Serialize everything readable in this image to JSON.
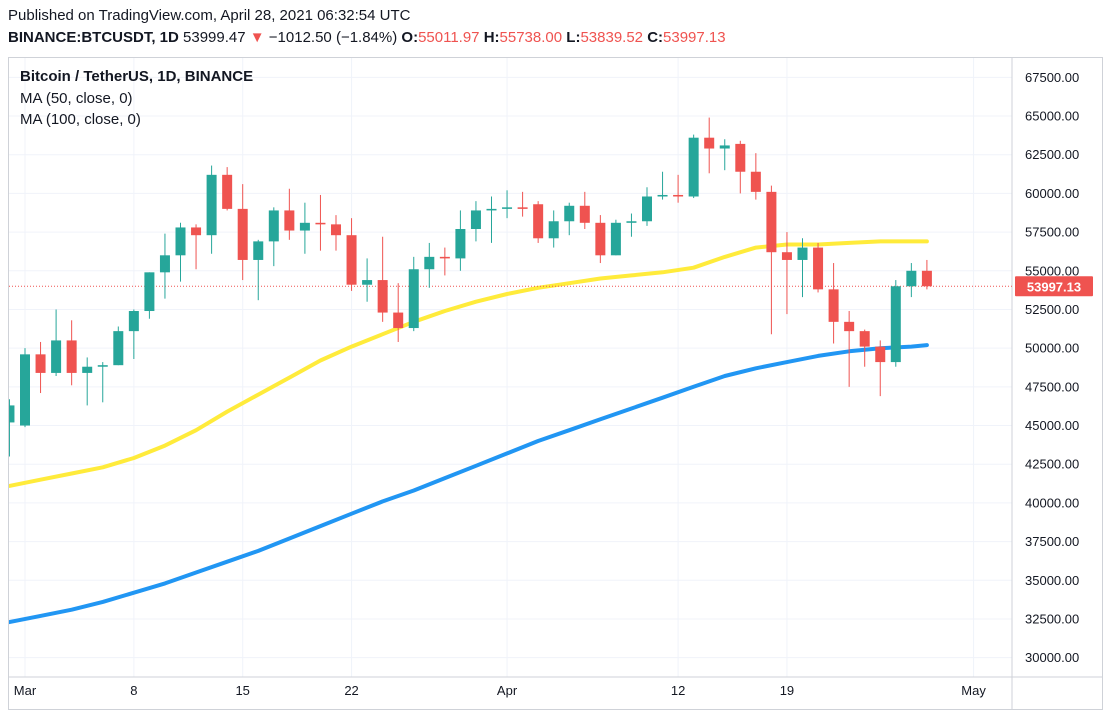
{
  "header": {
    "published": "Published on TradingView.com, April 28, 2021 06:32:54 UTC",
    "symbol": "BINANCE:BTCUSDT, 1D",
    "last": "53999.47",
    "arrow": "▼",
    "change": "−1012.50 (−1.84%)",
    "o_label": "O:",
    "o_value": "55011.97",
    "h_label": "H:",
    "h_value": "55738.00",
    "l_label": "L:",
    "l_value": "53839.52",
    "c_label": "C:",
    "c_value": "53997.13"
  },
  "legend": {
    "title": "Bitcoin / TetherUS, 1D, BINANCE",
    "ma50": "MA (50, close, 0)",
    "ma100": "MA (100, close, 0)"
  },
  "colors": {
    "up": "#26a69a",
    "down": "#ef5350",
    "ma50": "#ffeb3b",
    "ma100": "#2196f3",
    "grid": "#f0f3fa",
    "price_line": "#ef5350"
  },
  "chart_data": {
    "type": "candlestick",
    "ylim": [
      28750,
      68750
    ],
    "y_ticks": [
      "67500.00",
      "65000.00",
      "62500.00",
      "60000.00",
      "57500.00",
      "55000.00",
      "52500.00",
      "50000.00",
      "47500.00",
      "45000.00",
      "42500.00",
      "40000.00",
      "37500.00",
      "35000.00",
      "32500.00",
      "30000.00"
    ],
    "x_ticks": [
      {
        "label": "Mar",
        "day": 1
      },
      {
        "label": "8",
        "day": 8
      },
      {
        "label": "15",
        "day": 15
      },
      {
        "label": "22",
        "day": 22
      },
      {
        "label": "Apr",
        "day": 32
      },
      {
        "label": "12",
        "day": 43
      },
      {
        "label": "19",
        "day": 50
      },
      {
        "label": "May",
        "day": 62
      }
    ],
    "last_price_label": "53997.13",
    "last_price": 53997.13,
    "candles": [
      {
        "day": 0,
        "o": 45200,
        "h": 46700,
        "l": 43000,
        "c": 46300
      },
      {
        "day": 1,
        "o": 45000,
        "h": 50000,
        "l": 44900,
        "c": 49600
      },
      {
        "day": 2,
        "o": 49600,
        "h": 50400,
        "l": 47100,
        "c": 48400
      },
      {
        "day": 3,
        "o": 48400,
        "h": 52500,
        "l": 48200,
        "c": 50500
      },
      {
        "day": 4,
        "o": 50500,
        "h": 51800,
        "l": 47600,
        "c": 48400
      },
      {
        "day": 5,
        "o": 48400,
        "h": 49400,
        "l": 46300,
        "c": 48800
      },
      {
        "day": 6,
        "o": 48800,
        "h": 49100,
        "l": 46500,
        "c": 48900
      },
      {
        "day": 7,
        "o": 48900,
        "h": 51400,
        "l": 48900,
        "c": 51100
      },
      {
        "day": 8,
        "o": 51100,
        "h": 52500,
        "l": 49300,
        "c": 52400
      },
      {
        "day": 9,
        "o": 52400,
        "h": 54900,
        "l": 51900,
        "c": 54900
      },
      {
        "day": 10,
        "o": 54900,
        "h": 57400,
        "l": 53200,
        "c": 56000
      },
      {
        "day": 11,
        "o": 56000,
        "h": 58100,
        "l": 54300,
        "c": 57800
      },
      {
        "day": 12,
        "o": 57800,
        "h": 58000,
        "l": 55100,
        "c": 57300
      },
      {
        "day": 13,
        "o": 57300,
        "h": 61800,
        "l": 56100,
        "c": 61200
      },
      {
        "day": 14,
        "o": 61200,
        "h": 61700,
        "l": 58900,
        "c": 59000
      },
      {
        "day": 15,
        "o": 59000,
        "h": 60600,
        "l": 54400,
        "c": 55700
      },
      {
        "day": 16,
        "o": 55700,
        "h": 57000,
        "l": 53100,
        "c": 56900
      },
      {
        "day": 17,
        "o": 56900,
        "h": 59100,
        "l": 55300,
        "c": 58900
      },
      {
        "day": 18,
        "o": 58900,
        "h": 60300,
        "l": 57000,
        "c": 57600
      },
      {
        "day": 19,
        "o": 57600,
        "h": 59400,
        "l": 56100,
        "c": 58100
      },
      {
        "day": 20,
        "o": 58100,
        "h": 59900,
        "l": 56300,
        "c": 58000
      },
      {
        "day": 21,
        "o": 58000,
        "h": 58600,
        "l": 56300,
        "c": 57300
      },
      {
        "day": 22,
        "o": 57300,
        "h": 58400,
        "l": 53700,
        "c": 54100
      },
      {
        "day": 23,
        "o": 54100,
        "h": 55800,
        "l": 53000,
        "c": 54400
      },
      {
        "day": 24,
        "o": 54400,
        "h": 57200,
        "l": 51700,
        "c": 52300
      },
      {
        "day": 25,
        "o": 52300,
        "h": 54200,
        "l": 50400,
        "c": 51300
      },
      {
        "day": 26,
        "o": 51300,
        "h": 55900,
        "l": 51100,
        "c": 55100
      },
      {
        "day": 27,
        "o": 55100,
        "h": 56800,
        "l": 53900,
        "c": 55900
      },
      {
        "day": 28,
        "o": 55900,
        "h": 56500,
        "l": 54700,
        "c": 55800
      },
      {
        "day": 29,
        "o": 55800,
        "h": 58900,
        "l": 55000,
        "c": 57700
      },
      {
        "day": 30,
        "o": 57700,
        "h": 59500,
        "l": 56900,
        "c": 58900
      },
      {
        "day": 31,
        "o": 58900,
        "h": 59800,
        "l": 56800,
        "c": 59000
      },
      {
        "day": 32,
        "o": 59000,
        "h": 60200,
        "l": 58400,
        "c": 59100
      },
      {
        "day": 33,
        "o": 59100,
        "h": 60100,
        "l": 58500,
        "c": 59000
      },
      {
        "day": 34,
        "o": 59300,
        "h": 59500,
        "l": 56800,
        "c": 57100
      },
      {
        "day": 35,
        "o": 57100,
        "h": 58900,
        "l": 56500,
        "c": 58200
      },
      {
        "day": 36,
        "o": 58200,
        "h": 59400,
        "l": 57300,
        "c": 59200
      },
      {
        "day": 37,
        "o": 59200,
        "h": 60100,
        "l": 57700,
        "c": 58100
      },
      {
        "day": 38,
        "o": 58100,
        "h": 58600,
        "l": 55500,
        "c": 56000
      },
      {
        "day": 39,
        "o": 56000,
        "h": 58300,
        "l": 56000,
        "c": 58100
      },
      {
        "day": 40,
        "o": 58100,
        "h": 58700,
        "l": 57200,
        "c": 58200
      },
      {
        "day": 41,
        "o": 58200,
        "h": 60400,
        "l": 57900,
        "c": 59800
      },
      {
        "day": 42,
        "o": 59800,
        "h": 61400,
        "l": 59600,
        "c": 59900
      },
      {
        "day": 43,
        "o": 59900,
        "h": 61200,
        "l": 59400,
        "c": 59800
      },
      {
        "day": 44,
        "o": 59800,
        "h": 63800,
        "l": 59700,
        "c": 63600
      },
      {
        "day": 45,
        "o": 63600,
        "h": 64900,
        "l": 61300,
        "c": 62900
      },
      {
        "day": 46,
        "o": 62900,
        "h": 63500,
        "l": 61500,
        "c": 63100
      },
      {
        "day": 47,
        "o": 63200,
        "h": 63400,
        "l": 60000,
        "c": 61400
      },
      {
        "day": 48,
        "o": 61400,
        "h": 62600,
        "l": 59600,
        "c": 60100
      },
      {
        "day": 49,
        "o": 60100,
        "h": 60500,
        "l": 50900,
        "c": 56200
      },
      {
        "day": 50,
        "o": 56200,
        "h": 57500,
        "l": 52200,
        "c": 55700
      },
      {
        "day": 51,
        "o": 55700,
        "h": 57100,
        "l": 53300,
        "c": 56500
      },
      {
        "day": 52,
        "o": 56500,
        "h": 56800,
        "l": 53600,
        "c": 53800
      },
      {
        "day": 53,
        "o": 53800,
        "h": 55500,
        "l": 50300,
        "c": 51700
      },
      {
        "day": 54,
        "o": 51700,
        "h": 52400,
        "l": 47500,
        "c": 51100
      },
      {
        "day": 55,
        "o": 51100,
        "h": 51200,
        "l": 48800,
        "c": 50100
      },
      {
        "day": 56,
        "o": 50100,
        "h": 50500,
        "l": 46900,
        "c": 49100
      },
      {
        "day": 57,
        "o": 49100,
        "h": 54400,
        "l": 48800,
        "c": 54000
      },
      {
        "day": 58,
        "o": 54000,
        "h": 55500,
        "l": 53300,
        "c": 55000
      },
      {
        "day": 59,
        "o": 55000,
        "h": 55700,
        "l": 53800,
        "c": 54000
      }
    ],
    "ma50": [
      [
        0,
        41100
      ],
      [
        2,
        41500
      ],
      [
        4,
        41900
      ],
      [
        6,
        42300
      ],
      [
        8,
        42900
      ],
      [
        10,
        43700
      ],
      [
        12,
        44700
      ],
      [
        14,
        45900
      ],
      [
        16,
        47000
      ],
      [
        18,
        48100
      ],
      [
        20,
        49200
      ],
      [
        22,
        50100
      ],
      [
        24,
        50900
      ],
      [
        26,
        51700
      ],
      [
        28,
        52400
      ],
      [
        30,
        53000
      ],
      [
        32,
        53500
      ],
      [
        34,
        53900
      ],
      [
        36,
        54200
      ],
      [
        38,
        54500
      ],
      [
        40,
        54700
      ],
      [
        42,
        54900
      ],
      [
        44,
        55200
      ],
      [
        46,
        55900
      ],
      [
        48,
        56500
      ],
      [
        50,
        56700
      ],
      [
        52,
        56700
      ],
      [
        54,
        56800
      ],
      [
        56,
        56900
      ],
      [
        58,
        56900
      ],
      [
        59,
        56900
      ]
    ],
    "ma100": [
      [
        0,
        32300
      ],
      [
        2,
        32700
      ],
      [
        4,
        33100
      ],
      [
        6,
        33600
      ],
      [
        8,
        34200
      ],
      [
        10,
        34800
      ],
      [
        12,
        35500
      ],
      [
        14,
        36200
      ],
      [
        16,
        36900
      ],
      [
        18,
        37700
      ],
      [
        20,
        38500
      ],
      [
        22,
        39300
      ],
      [
        24,
        40100
      ],
      [
        26,
        40800
      ],
      [
        28,
        41600
      ],
      [
        30,
        42400
      ],
      [
        32,
        43200
      ],
      [
        34,
        44000
      ],
      [
        36,
        44700
      ],
      [
        38,
        45400
      ],
      [
        40,
        46100
      ],
      [
        42,
        46800
      ],
      [
        44,
        47500
      ],
      [
        46,
        48200
      ],
      [
        48,
        48700
      ],
      [
        50,
        49100
      ],
      [
        52,
        49500
      ],
      [
        54,
        49800
      ],
      [
        56,
        50000
      ],
      [
        58,
        50100
      ],
      [
        59,
        50200
      ]
    ]
  }
}
